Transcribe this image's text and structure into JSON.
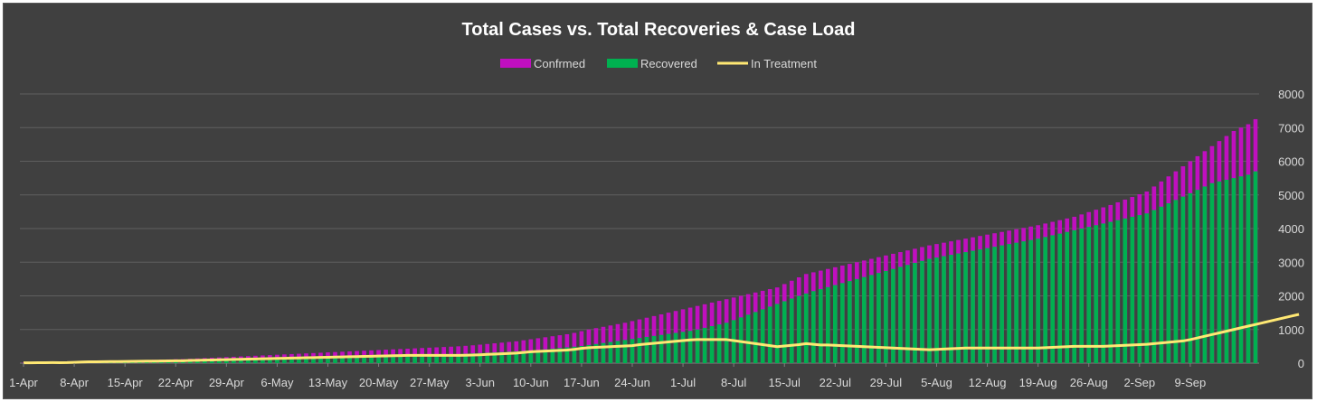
{
  "chart_data": {
    "type": "bar",
    "title": "Total Cases vs. Total Recoveries & Case Load",
    "xlabel": "",
    "ylabel": "",
    "ylim": [
      0,
      8000
    ],
    "yticks": [
      0,
      1000,
      2000,
      3000,
      4000,
      5000,
      6000,
      7000,
      8000
    ],
    "grid": true,
    "legend_position": "top-center",
    "x_start": "1-Apr",
    "x_end": "15-Sep",
    "x_tick_labels": [
      "1-Apr",
      "8-Apr",
      "15-Apr",
      "22-Apr",
      "29-Apr",
      "6-May",
      "13-May",
      "20-May",
      "27-May",
      "3-Jun",
      "10-Jun",
      "17-Jun",
      "24-Jun",
      "1-Jul",
      "8-Jul",
      "15-Jul",
      "22-Jul",
      "29-Jul",
      "5-Aug",
      "12-Aug",
      "19-Aug",
      "26-Aug",
      "2-Sep",
      "9-Sep"
    ],
    "x_tick_step_days": 7,
    "series": [
      {
        "name": "Confrmed",
        "kind": "bar",
        "color": "#c00fbf",
        "values": [
          10,
          10,
          12,
          15,
          18,
          20,
          25,
          35,
          45,
          55,
          60,
          65,
          70,
          72,
          78,
          85,
          90,
          95,
          100,
          105,
          110,
          115,
          120,
          130,
          140,
          150,
          160,
          170,
          180,
          190,
          200,
          210,
          220,
          230,
          240,
          250,
          260,
          270,
          280,
          290,
          300,
          310,
          320,
          330,
          340,
          350,
          360,
          370,
          380,
          390,
          400,
          410,
          420,
          430,
          440,
          450,
          460,
          470,
          480,
          490,
          500,
          515,
          530,
          550,
          570,
          590,
          610,
          630,
          650,
          680,
          710,
          740,
          770,
          800,
          830,
          860,
          900,
          950,
          1000,
          1040,
          1080,
          1120,
          1160,
          1200,
          1250,
          1300,
          1350,
          1400,
          1450,
          1500,
          1550,
          1600,
          1650,
          1700,
          1750,
          1800,
          1850,
          1900,
          1950,
          2000,
          2050,
          2100,
          2150,
          2200,
          2250,
          2350,
          2450,
          2550,
          2650,
          2700,
          2750,
          2800,
          2850,
          2900,
          2950,
          3000,
          3050,
          3100,
          3150,
          3200,
          3250,
          3300,
          3350,
          3400,
          3450,
          3500,
          3540,
          3580,
          3620,
          3660,
          3700,
          3740,
          3780,
          3820,
          3860,
          3900,
          3940,
          3980,
          4020,
          4060,
          4100,
          4150,
          4200,
          4250,
          4300,
          4350,
          4420,
          4490,
          4560,
          4630,
          4700,
          4780,
          4860,
          4940,
          5020,
          5100,
          5250,
          5400,
          5550,
          5700,
          5850,
          6000,
          6150,
          6300,
          6450,
          6600,
          6750,
          6900,
          7000,
          7100,
          7250
        ]
      },
      {
        "name": "Recovered",
        "kind": "bar",
        "color": "#00b050",
        "values": [
          0,
          0,
          0,
          0,
          2,
          5,
          8,
          10,
          12,
          15,
          18,
          20,
          22,
          25,
          28,
          30,
          32,
          35,
          38,
          40,
          42,
          45,
          48,
          50,
          55,
          60,
          65,
          70,
          75,
          80,
          85,
          90,
          95,
          100,
          105,
          110,
          115,
          120,
          125,
          130,
          135,
          140,
          145,
          150,
          155,
          160,
          165,
          170,
          175,
          180,
          185,
          190,
          195,
          200,
          210,
          220,
          230,
          240,
          250,
          260,
          270,
          280,
          290,
          300,
          310,
          320,
          330,
          340,
          350,
          360,
          370,
          390,
          410,
          430,
          450,
          470,
          490,
          510,
          540,
          570,
          600,
          630,
          660,
          690,
          720,
          750,
          780,
          810,
          840,
          870,
          900,
          930,
          960,
          1000,
          1050,
          1100,
          1150,
          1200,
          1280,
          1360,
          1440,
          1520,
          1600,
          1680,
          1760,
          1840,
          1920,
          2000,
          2070,
          2140,
          2200,
          2260,
          2320,
          2380,
          2440,
          2500,
          2560,
          2620,
          2680,
          2740,
          2800,
          2860,
          2920,
          2980,
          3040,
          3100,
          3140,
          3180,
          3220,
          3260,
          3300,
          3340,
          3380,
          3420,
          3460,
          3500,
          3540,
          3580,
          3620,
          3660,
          3700,
          3750,
          3800,
          3850,
          3900,
          3950,
          4000,
          4050,
          4100,
          4150,
          4200,
          4250,
          4300,
          4350,
          4400,
          4450,
          4550,
          4650,
          4750,
          4850,
          4950,
          5050,
          5150,
          5250,
          5350,
          5400,
          5450,
          5500,
          5550,
          5600,
          5700
        ]
      },
      {
        "name": "In Treatment",
        "kind": "line",
        "color": "#ffe873",
        "values": [
          10,
          10,
          12,
          15,
          16,
          15,
          17,
          25,
          33,
          40,
          42,
          45,
          48,
          47,
          50,
          55,
          58,
          60,
          62,
          65,
          68,
          70,
          72,
          80,
          85,
          90,
          95,
          100,
          105,
          110,
          115,
          120,
          125,
          130,
          135,
          140,
          145,
          150,
          155,
          160,
          165,
          170,
          175,
          180,
          185,
          190,
          195,
          200,
          205,
          210,
          215,
          220,
          225,
          230,
          230,
          230,
          230,
          230,
          230,
          230,
          230,
          235,
          240,
          250,
          260,
          270,
          280,
          290,
          300,
          320,
          340,
          350,
          360,
          370,
          380,
          390,
          410,
          440,
          460,
          470,
          480,
          490,
          500,
          510,
          520,
          550,
          570,
          590,
          610,
          630,
          650,
          670,
          690,
          700,
          700,
          700,
          700,
          700,
          670,
          640,
          610,
          580,
          550,
          520,
          490,
          510,
          530,
          550,
          580,
          560,
          540,
          540,
          530,
          520,
          510,
          500,
          490,
          480,
          470,
          460,
          450,
          440,
          430,
          420,
          410,
          400,
          410,
          420,
          430,
          440,
          450,
          450,
          450,
          450,
          450,
          450,
          450,
          450,
          450,
          450,
          450,
          460,
          470,
          480,
          490,
          500,
          500,
          500,
          500,
          500,
          510,
          520,
          530,
          540,
          550,
          560,
          580,
          600,
          620,
          640,
          660,
          700,
          750,
          800,
          850,
          900,
          950,
          1000,
          1050,
          1100,
          1150,
          1200,
          1250,
          1300,
          1350,
          1400,
          1450
        ]
      }
    ]
  }
}
